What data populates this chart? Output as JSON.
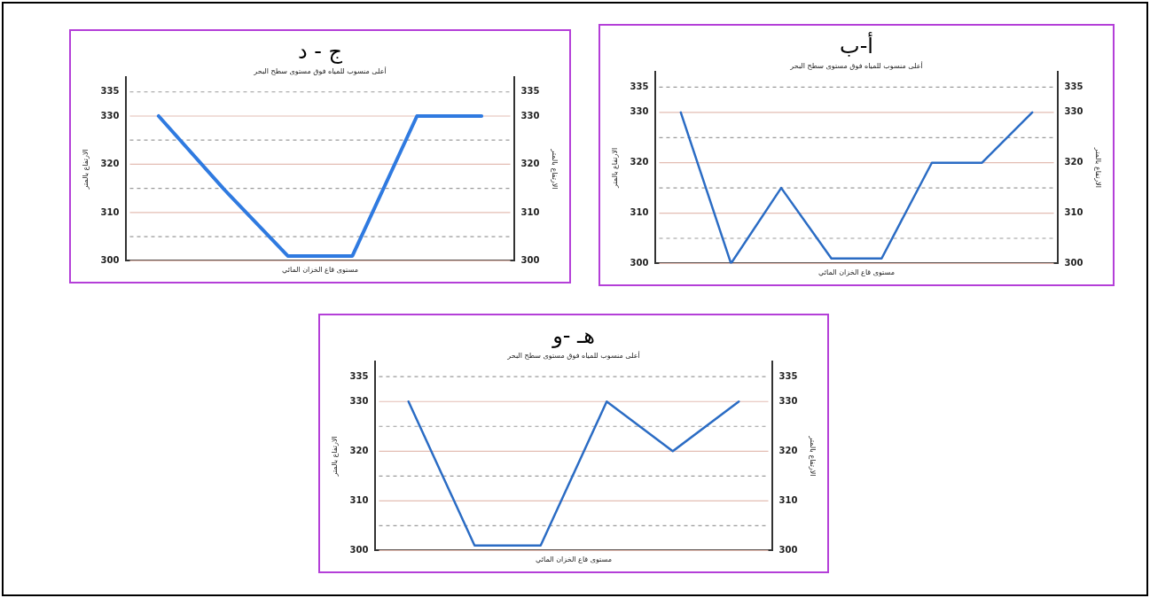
{
  "chart_data": [
    {
      "type": "line",
      "title": "أ-ب",
      "subtitle": "أعلى منسوب للمياه فوق مستوى سطح البحر",
      "xlabel": "مستوى قاع الخزان المائي",
      "ylabel": "الارتفاع بالمتر",
      "y2label": "الارتفاع بالمتر",
      "categories": [
        null,
        null,
        null,
        null,
        null,
        null,
        null,
        null
      ],
      "series": [
        {
          "color": "#2b6cc4",
          "values": [
            330,
            300,
            315,
            301,
            301,
            320,
            320,
            330
          ]
        }
      ],
      "ylim": [
        300,
        338
      ],
      "yticks": [
        300,
        {
          "value": 305,
          "label": null
        },
        310,
        {
          "value": 315,
          "label": null
        },
        320,
        {
          "value": 325,
          "label": null
        },
        330,
        335
      ],
      "y2lim": [
        300,
        338
      ],
      "y2ticks": [
        300,
        {
          "value": 305,
          "label": null
        },
        310,
        {
          "value": 315,
          "label": null
        },
        320,
        {
          "value": 325,
          "label": null
        },
        330,
        335
      ],
      "grid": "y",
      "tick_labels": "y",
      "marker": "none",
      "legend": false
    },
    {
      "type": "line",
      "title": "ج - د",
      "subtitle": "أعلى منسوب للمياه فوق مستوى سطح البحر",
      "xlabel": "مستوى قاع الخزان المائي",
      "ylabel": "الارتفاع بالمتر",
      "y2label": "الارتفاع بالمتر",
      "categories": [
        null,
        null,
        null,
        null,
        null,
        null
      ],
      "series": [
        {
          "color": "#2f7ae0",
          "values": [
            330,
            315,
            301,
            301,
            330,
            330
          ]
        }
      ],
      "ylim": [
        300,
        338
      ],
      "yticks": [
        300,
        {
          "value": 305,
          "label": null
        },
        310,
        {
          "value": 315,
          "label": null
        },
        320,
        {
          "value": 325,
          "label": null
        },
        330,
        335
      ],
      "y2lim": [
        300,
        338
      ],
      "y2ticks": [
        300,
        {
          "value": 305,
          "label": null
        },
        310,
        {
          "value": 315,
          "label": null
        },
        320,
        {
          "value": 325,
          "label": null
        },
        330,
        335
      ],
      "grid": "y",
      "tick_labels": "y",
      "marker": "none",
      "legend": false
    },
    {
      "type": "line",
      "title": "هـ -و",
      "subtitle": "أعلى منسوب للمياه فوق مستوى سطح البحر",
      "xlabel": "مستوى قاع الخزان المائي",
      "ylabel": "الارتفاع بالمتر",
      "y2label": "الارتفاع بالمتر",
      "categories": [
        null,
        null,
        null,
        null,
        null,
        null
      ],
      "series": [
        {
          "color": "#2b6cc4",
          "values": [
            330,
            301,
            301,
            330,
            320,
            330
          ]
        }
      ],
      "ylim": [
        300,
        338
      ],
      "yticks": [
        300,
        {
          "value": 305,
          "label": null
        },
        310,
        {
          "value": 315,
          "label": null
        },
        320,
        {
          "value": 325,
          "label": null
        },
        330,
        335
      ],
      "y2lim": [
        300,
        338
      ],
      "y2ticks": [
        300,
        {
          "value": 305,
          "label": null
        },
        310,
        {
          "value": 315,
          "label": null
        },
        320,
        {
          "value": 325,
          "label": null
        },
        330,
        335
      ],
      "grid": "y",
      "tick_labels": "y",
      "marker": "none",
      "legend": false
    }
  ]
}
